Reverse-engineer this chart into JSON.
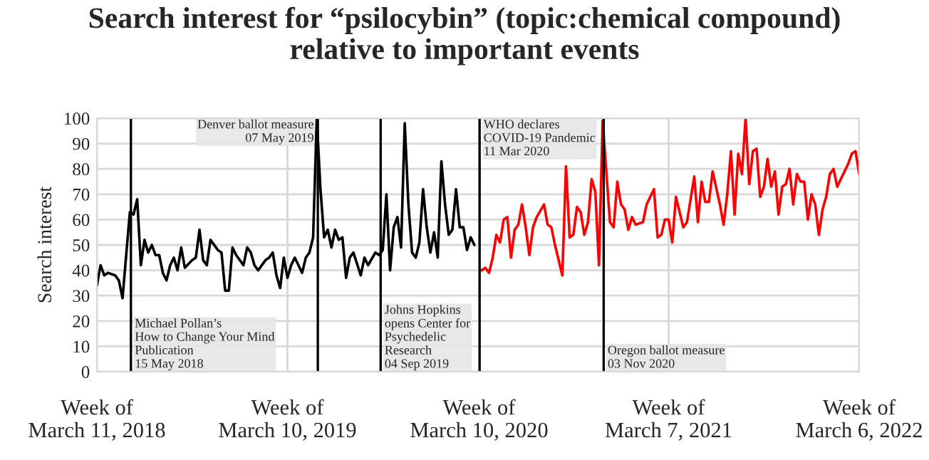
{
  "chart_data": {
    "type": "line",
    "title": "Search interest for “psilocybin” (topic:chemical compound)\nrelative to important events",
    "ylabel": "Search interest",
    "xlim": [
      "2018-03-11",
      "2022-03-06"
    ],
    "xticks": [
      {
        "value": "2018-03-11",
        "label": "Week of\nMarch 11, 2018"
      },
      {
        "value": "2019-03-10",
        "label": "Week of\nMarch 10, 2019"
      },
      {
        "value": "2020-03-10",
        "label": "Week of\nMarch 10, 2020"
      },
      {
        "value": "2021-03-07",
        "label": "Week of\nMarch 7, 2021"
      },
      {
        "value": "2022-03-06",
        "label": "Week of\nMarch 6, 2022"
      }
    ],
    "ylim": [
      0,
      100
    ],
    "yticks": [
      0,
      10,
      20,
      30,
      40,
      50,
      60,
      70,
      80,
      90,
      100
    ],
    "grid": true,
    "legend": false,
    "line_style": "solid",
    "marker": "none",
    "series": [
      {
        "color": "#000000",
        "x": [
          "2018-03-11",
          "2018-03-18",
          "2018-03-25",
          "2018-04-01",
          "2018-04-15",
          "2018-04-22",
          "2018-04-29",
          "2018-05-13",
          "2018-05-20",
          "2018-05-27",
          "2018-06-03",
          "2018-06-10",
          "2018-06-17",
          "2018-06-24",
          "2018-07-01",
          "2018-07-08",
          "2018-07-15",
          "2018-07-22",
          "2018-07-29",
          "2018-08-05",
          "2018-08-12",
          "2018-08-19",
          "2018-08-26",
          "2018-09-09",
          "2018-09-16",
          "2018-09-23",
          "2018-09-30",
          "2018-10-07",
          "2018-10-14",
          "2018-10-28",
          "2018-11-04",
          "2018-11-11",
          "2018-11-18",
          "2018-11-25",
          "2018-12-02",
          "2018-12-16",
          "2018-12-23",
          "2018-12-30",
          "2019-01-06",
          "2019-01-13",
          "2019-01-27",
          "2019-02-03",
          "2019-02-10",
          "2019-02-17",
          "2019-02-24",
          "2019-03-03",
          "2019-03-10",
          "2019-03-17",
          "2019-03-24",
          "2019-03-31",
          "2019-04-07",
          "2019-04-14",
          "2019-04-21",
          "2019-04-28",
          "2019-05-05",
          "2019-05-12",
          "2019-05-19",
          "2019-05-26",
          "2019-06-02",
          "2019-06-09",
          "2019-06-16",
          "2019-06-23",
          "2019-06-30",
          "2019-07-07",
          "2019-07-14",
          "2019-07-28",
          "2019-08-04",
          "2019-08-11",
          "2019-08-25",
          "2019-09-01",
          "2019-09-08",
          "2019-09-15",
          "2019-09-22",
          "2019-09-29",
          "2019-10-06",
          "2019-10-13",
          "2019-10-20",
          "2019-10-27",
          "2019-11-03",
          "2019-11-10",
          "2019-11-17",
          "2019-11-24",
          "2019-12-01",
          "2019-12-08",
          "2019-12-15",
          "2019-12-22",
          "2019-12-29",
          "2020-01-05",
          "2020-01-12",
          "2020-01-19",
          "2020-01-26",
          "2020-02-02",
          "2020-02-09",
          "2020-02-16",
          "2020-02-23",
          "2020-03-01"
        ],
        "values": [
          34,
          42,
          38,
          39,
          38,
          36,
          29,
          63,
          62,
          68,
          42,
          52,
          47,
          50,
          46,
          46,
          39,
          36,
          42,
          45,
          40,
          49,
          41,
          44,
          45,
          56,
          44,
          42,
          52,
          48,
          47,
          32,
          32,
          49,
          46,
          42,
          49,
          47,
          42,
          40,
          44,
          45,
          47,
          38,
          33,
          45,
          37,
          42,
          45,
          42,
          39,
          45,
          47,
          53,
          100,
          72,
          53,
          56,
          49,
          56,
          52,
          53,
          37,
          45,
          47,
          38,
          45,
          42,
          47,
          46,
          48,
          70,
          40,
          57,
          61,
          49,
          98,
          66,
          47,
          45,
          51,
          72,
          57,
          47,
          55,
          45,
          83,
          66,
          54,
          56,
          72,
          57,
          57,
          48,
          53,
          50
        ]
      },
      {
        "color": "#ff0000",
        "x": [
          "2020-03-15",
          "2020-03-22",
          "2020-03-29",
          "2020-04-05",
          "2020-04-12",
          "2020-04-19",
          "2020-04-26",
          "2020-05-03",
          "2020-05-10",
          "2020-05-17",
          "2020-05-24",
          "2020-05-31",
          "2020-06-07",
          "2020-06-14",
          "2020-06-21",
          "2020-06-28",
          "2020-07-12",
          "2020-07-19",
          "2020-07-26",
          "2020-08-02",
          "2020-08-16",
          "2020-08-23",
          "2020-08-30",
          "2020-09-06",
          "2020-09-13",
          "2020-09-20",
          "2020-09-27",
          "2020-10-04",
          "2020-10-11",
          "2020-10-18",
          "2020-10-25",
          "2020-11-01",
          "2020-11-15",
          "2020-11-22",
          "2020-11-29",
          "2020-12-06",
          "2020-12-13",
          "2020-12-20",
          "2020-12-27",
          "2021-01-03",
          "2021-01-17",
          "2021-01-24",
          "2021-02-07",
          "2021-02-14",
          "2021-02-21",
          "2021-02-28",
          "2021-03-07",
          "2021-03-14",
          "2021-03-21",
          "2021-04-04",
          "2021-04-11",
          "2021-04-25",
          "2021-05-02",
          "2021-05-09",
          "2021-05-16",
          "2021-05-23",
          "2021-05-30",
          "2021-06-13",
          "2021-06-20",
          "2021-06-27",
          "2021-07-04",
          "2021-07-11",
          "2021-07-18",
          "2021-07-25",
          "2021-08-01",
          "2021-08-08",
          "2021-08-15",
          "2021-08-22",
          "2021-08-29",
          "2021-09-05",
          "2021-09-12",
          "2021-09-19",
          "2021-09-26",
          "2021-10-03",
          "2021-10-10",
          "2021-10-17",
          "2021-10-24",
          "2021-10-31",
          "2021-11-07",
          "2021-11-14",
          "2021-11-21",
          "2021-11-28",
          "2021-12-05",
          "2021-12-12",
          "2021-12-19",
          "2021-12-26",
          "2022-01-02",
          "2022-01-09",
          "2022-01-16",
          "2022-01-23",
          "2022-01-30",
          "2022-02-13",
          "2022-02-20",
          "2022-02-27",
          "2022-03-06"
        ],
        "values": [
          40,
          41,
          39,
          45,
          54,
          51,
          60,
          61,
          45,
          56,
          58,
          66,
          57,
          46,
          57,
          61,
          66,
          58,
          57,
          50,
          38,
          81,
          53,
          54,
          65,
          63,
          54,
          59,
          76,
          71,
          42,
          99,
          59,
          57,
          75,
          66,
          64,
          56,
          61,
          58,
          59,
          66,
          72,
          53,
          54,
          60,
          60,
          51,
          69,
          57,
          59,
          77,
          59,
          75,
          67,
          67,
          79,
          66,
          58,
          70,
          87,
          62,
          86,
          78,
          100,
          74,
          87,
          88,
          69,
          73,
          84,
          73,
          79,
          62,
          73,
          74,
          80,
          66,
          78,
          75,
          75,
          60,
          70,
          66,
          54,
          64,
          69,
          78,
          80,
          73,
          76,
          82,
          86,
          87,
          78
        ]
      }
    ],
    "ref_lines": [
      {
        "axis": "x",
        "value": "2018-05-15",
        "label": "Michael Pollan’s\nHow to Change Your Mind\nPublication\n15 May 2018",
        "color": "#000000"
      },
      {
        "axis": "x",
        "value": "2019-05-07",
        "label": "Denver ballot measure\n07 May 2019",
        "color": "#000000"
      },
      {
        "axis": "x",
        "value": "2019-09-04",
        "label": "Johns Hopkins\nopens Center for\nPsychedelic\nResearch\n04 Sep 2019",
        "color": "#000000"
      },
      {
        "axis": "x",
        "value": "2020-03-11",
        "label": "WHO declares\nCOVID-19 Pandemic\n11 Mar 2020",
        "color": "#000000"
      },
      {
        "axis": "x",
        "value": "2020-11-03",
        "label": "Oregon ballot measure\n03 Nov 2020",
        "color": "#000000"
      }
    ]
  }
}
